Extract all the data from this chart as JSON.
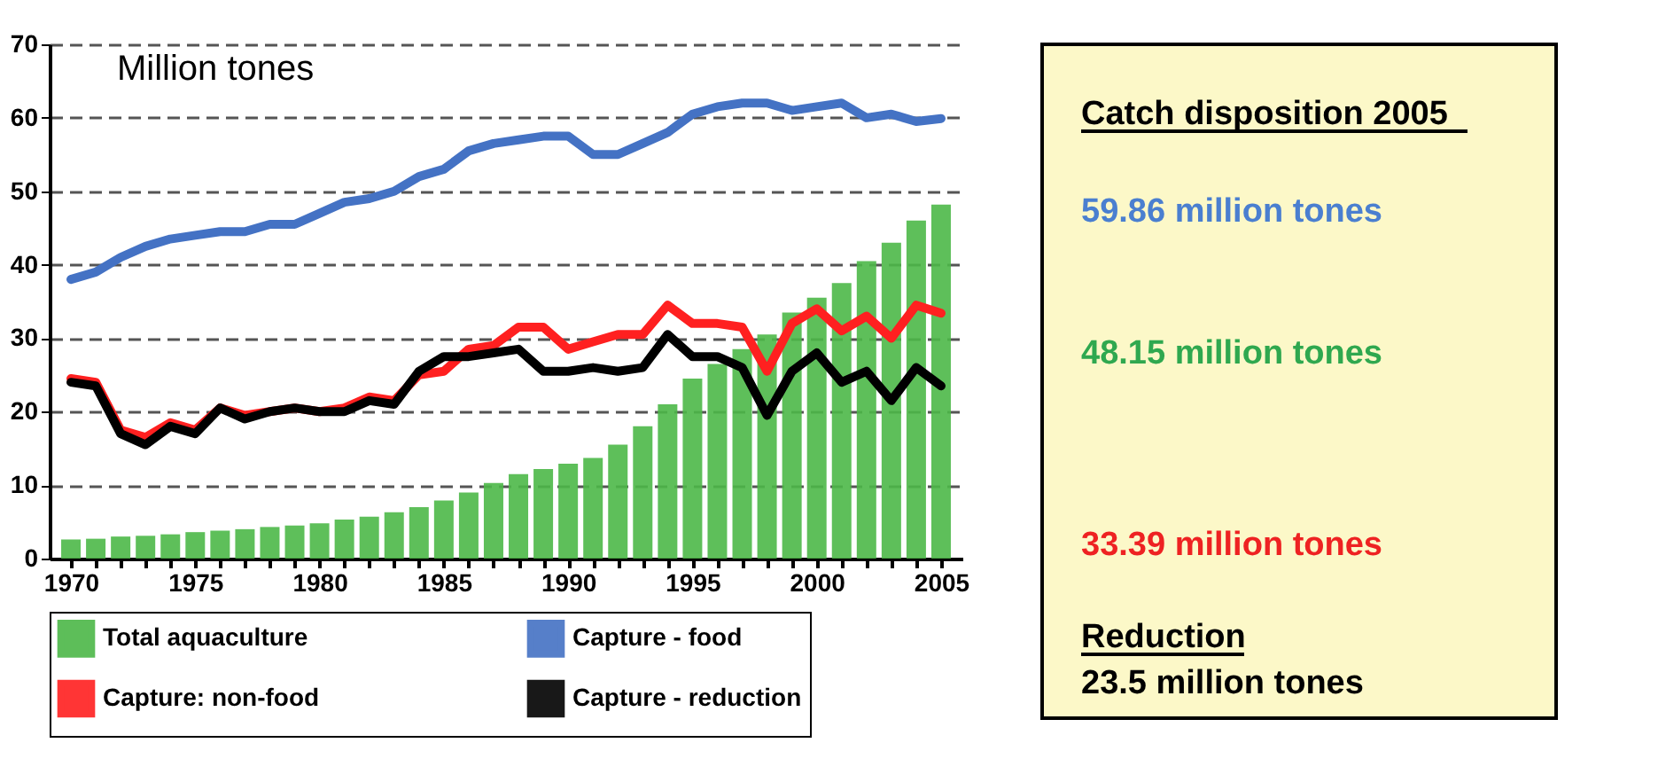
{
  "chart_data": [
    {
      "type": "bar",
      "x": [
        1970,
        1971,
        1972,
        1973,
        1974,
        1975,
        1976,
        1977,
        1978,
        1979,
        1980,
        1981,
        1982,
        1983,
        1984,
        1985,
        1986,
        1987,
        1988,
        1989,
        1990,
        1991,
        1992,
        1993,
        1994,
        1995,
        1996,
        1997,
        1998,
        1999,
        2000,
        2001,
        2002,
        2003,
        2004,
        2005
      ],
      "series": [
        {
          "name": "Total aquaculture",
          "color": "#4cb848",
          "values": [
            2.6,
            2.7,
            3.0,
            3.1,
            3.3,
            3.6,
            3.8,
            4.0,
            4.3,
            4.5,
            4.8,
            5.3,
            5.7,
            6.3,
            7.0,
            7.9,
            9.0,
            10.3,
            11.5,
            12.2,
            12.9,
            13.7,
            15.5,
            18.0,
            21.0,
            24.5,
            26.5,
            28.5,
            30.5,
            33.5,
            35.5,
            37.5,
            40.5,
            43.0,
            46.0,
            48.2
          ]
        },
        {
          "name": "Capture: non-food",
          "type": "line",
          "color": "#ff2020",
          "values": [
            24.5,
            24,
            17.5,
            16.5,
            18.5,
            17.5,
            20.5,
            19.5,
            20,
            20.5,
            20,
            20.5,
            22,
            21.5,
            25,
            25.5,
            28.5,
            29,
            31.5,
            31.5,
            28.5,
            29.5,
            30.5,
            30.5,
            34.5,
            32,
            32,
            31.5,
            25.5,
            32,
            34,
            31,
            33,
            30,
            34.5,
            33.4
          ]
        },
        {
          "name": "Capture - food",
          "type": "line",
          "color": "#4472c4",
          "values": [
            38,
            39,
            41,
            42.5,
            43.5,
            44,
            44.5,
            44.5,
            45.5,
            45.5,
            47,
            48.5,
            49,
            50,
            52,
            53,
            55.5,
            56.5,
            57,
            57.5,
            57.5,
            55,
            55,
            56.5,
            58,
            60.5,
            61.5,
            62,
            62,
            61,
            61.5,
            62,
            60,
            60.5,
            59.5,
            59.9
          ]
        },
        {
          "name": "Capture - reduction",
          "type": "line",
          "color": "#000000",
          "values": [
            24,
            23.5,
            17,
            15.5,
            18,
            17,
            20.5,
            19,
            20,
            20.5,
            20,
            20,
            21.5,
            21,
            25.5,
            27.5,
            27.5,
            28,
            28.5,
            25.5,
            25.5,
            26,
            25.5,
            26,
            30.5,
            27.5,
            27.5,
            26,
            19.5,
            25.5,
            28,
            24,
            25.5,
            21.5,
            26,
            23.5
          ]
        }
      ],
      "xlim": [
        1969.5,
        2005.5
      ],
      "xticks": [
        1970,
        {
          "value": 1971,
          "label": null
        },
        {
          "value": 1972,
          "label": null
        },
        {
          "value": 1973,
          "label": null
        },
        {
          "value": 1974,
          "label": null
        },
        1975,
        {
          "value": 1976,
          "label": null
        },
        {
          "value": 1977,
          "label": null
        },
        {
          "value": 1978,
          "label": null
        },
        {
          "value": 1979,
          "label": null
        },
        1980,
        {
          "value": 1981,
          "label": null
        },
        {
          "value": 1982,
          "label": null
        },
        {
          "value": 1983,
          "label": null
        },
        {
          "value": 1984,
          "label": null
        },
        1985,
        {
          "value": 1986,
          "label": null
        },
        {
          "value": 1987,
          "label": null
        },
        {
          "value": 1988,
          "label": null
        },
        {
          "value": 1989,
          "label": null
        },
        1990,
        {
          "value": 1991,
          "label": null
        },
        {
          "value": 1992,
          "label": null
        },
        {
          "value": 1993,
          "label": null
        },
        {
          "value": 1994,
          "label": null
        },
        1995,
        {
          "value": 1996,
          "label": null
        },
        {
          "value": 1997,
          "label": null
        },
        {
          "value": 1998,
          "label": null
        },
        {
          "value": 1999,
          "label": null
        },
        2000,
        {
          "value": 2001,
          "label": null
        },
        {
          "value": 2002,
          "label": null
        },
        {
          "value": 2003,
          "label": null
        },
        {
          "value": 2004,
          "label": null
        },
        2005
      ],
      "ylim": [
        0,
        70
      ],
      "yticks": [
        0,
        10,
        20,
        30,
        40,
        50,
        60,
        70
      ],
      "grid": "y",
      "legend": "bottom",
      "line_style": "solid",
      "annotations": [
        "Million tones"
      ]
    },
    {
      "type": "other",
      "title": "Catch disposition 2005",
      "annotations": [
        "59.86 million tones",
        "48.15 million tones",
        "33.39 million tones",
        "Reduction",
        "23.5 million tones"
      ]
    }
  ]
}
